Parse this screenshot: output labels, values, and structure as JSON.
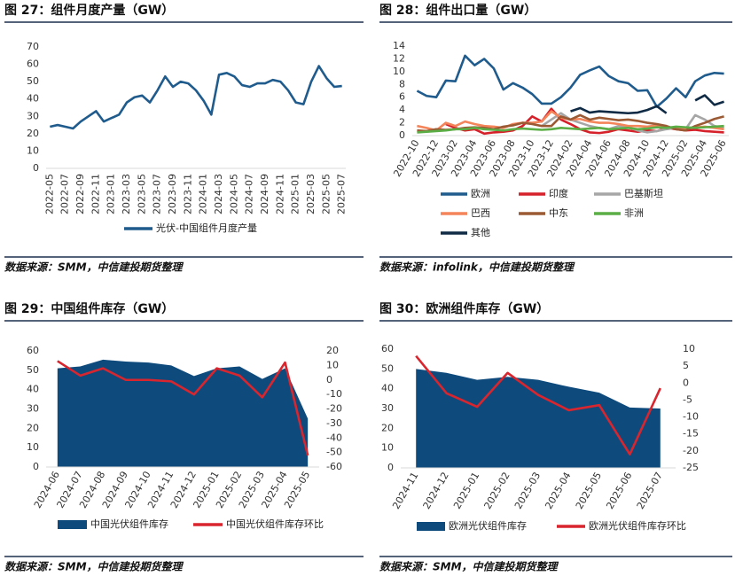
{
  "chart_data": [
    {
      "type": "line",
      "title": "图 27：组件月度产量（GW）",
      "source": "数据来源：SMM，中信建投期货整理",
      "categories": [
        "2022-05",
        null,
        "2022-07",
        null,
        "2022-09",
        null,
        "2022-11",
        null,
        "2023-01",
        null,
        "2023-03",
        null,
        "2023-05",
        null,
        "2023-07",
        null,
        "2023-09",
        null,
        "2023-11",
        null,
        "2024-01",
        null,
        "2024-03",
        null,
        "2024-05",
        null,
        "2024-07",
        null,
        "2024-09",
        null,
        "2024-11",
        null,
        "2025-01",
        null,
        "2025-03",
        null,
        "2025-05",
        null,
        "2025-07"
      ],
      "series": [
        {
          "name": "光伏-中国组件月度产量",
          "color": "#1f5b8c",
          "values": [
            24,
            25,
            24,
            23,
            27,
            30,
            33,
            27,
            29,
            31,
            38,
            41,
            42,
            38,
            45,
            53,
            47,
            50,
            49,
            45,
            39,
            31,
            54,
            55,
            53,
            48,
            47,
            49,
            49,
            51,
            50,
            45,
            38,
            37,
            50,
            59,
            52,
            47,
            47.5
          ]
        }
      ],
      "ylim": [
        0,
        70
      ],
      "yticks": [
        0,
        10,
        20,
        30,
        40,
        50,
        60,
        70
      ]
    },
    {
      "type": "line",
      "title": "图 28：组件出口量（GW）",
      "source": "数据来源：infolink，中信建投期货整理",
      "categories": [
        "2022-10",
        null,
        "2022-12",
        null,
        "2023-02",
        null,
        "2023-04",
        null,
        "2023-06",
        null,
        "2023-08",
        null,
        "2023-10",
        null,
        "2023-12",
        null,
        "2024-02",
        null,
        "2024-04",
        null,
        "2024-06",
        null,
        "2024-08",
        null,
        "2024-10",
        null,
        "2024-12",
        null,
        "2025-02",
        null,
        "2025-04",
        null,
        "2025-06"
      ],
      "series": [
        {
          "name": "欧洲",
          "color": "#1f5b8c",
          "values": [
            7,
            6.2,
            6,
            8.6,
            8.5,
            12.5,
            11,
            12,
            10.5,
            7.2,
            8.2,
            7.5,
            6.5,
            5,
            5,
            6,
            7.5,
            9.5,
            10.2,
            10.8,
            9.3,
            8.5,
            8.2,
            7,
            7.1,
            4.5,
            5.8,
            7.4,
            6,
            8.5,
            9.4,
            9.8,
            9.7
          ]
        },
        {
          "name": "印度",
          "color": "#d6202a",
          "values": [
            null,
            null,
            null,
            1.8,
            1.2,
            0.8,
            1.0,
            0.3,
            0.5,
            0.6,
            0.8,
            1.5,
            3.0,
            2.2,
            4.2,
            2.5,
            1.8,
            1.0,
            0.5,
            0.4,
            0.6,
            1.0,
            0.8,
            0.6,
            0.8,
            0.7,
            1.2,
            1.0,
            0.8,
            0.9,
            0.7,
            0.6,
            0.5
          ]
        },
        {
          "name": "巴基斯坦",
          "color": "#a6a6a6",
          "values": [
            null,
            null,
            null,
            null,
            null,
            null,
            null,
            null,
            null,
            null,
            null,
            null,
            null,
            1.5,
            2.5,
            3.5,
            2.5,
            2.0,
            1.5,
            1.2,
            1.0,
            1.5,
            1.3,
            0.8,
            0.5,
            0.7,
            1.0,
            1.2,
            1.0,
            3.2,
            2.5,
            1.5,
            1.2
          ]
        },
        {
          "name": "巴西",
          "color": "#f4845a",
          "values": [
            1.5,
            1.2,
            0.8,
            2.0,
            1.5,
            2.2,
            1.8,
            1.5,
            1.4,
            1.2,
            1.8,
            2.0,
            2.0,
            2.2,
            3.8,
            2.8,
            2.5,
            2.6,
            2.2,
            2.0,
            2.0,
            1.8,
            1.5,
            1.5,
            1.4,
            1.6,
            1.3,
            1.2,
            1.0,
            1.3,
            1.4,
            1.2,
            1.0
          ]
        },
        {
          "name": "中东",
          "color": "#9b5a33",
          "values": [
            0.8,
            0.7,
            1.0,
            0.9,
            1.0,
            1.2,
            1.3,
            1.2,
            1.0,
            1.4,
            1.6,
            2.0,
            1.8,
            1.5,
            1.5,
            3.0,
            2.5,
            3.2,
            2.5,
            2.8,
            2.6,
            2.4,
            2.5,
            2.3,
            2.0,
            1.8,
            1.5,
            1.0,
            0.8,
            1.5,
            2.0,
            2.6,
            3.0
          ]
        },
        {
          "name": "非洲",
          "color": "#5bad45",
          "values": [
            0.5,
            0.6,
            0.7,
            0.8,
            1.0,
            1.0,
            1.2,
            1.0,
            0.9,
            0.8,
            1.0,
            1.1,
            1.0,
            0.9,
            1.0,
            1.2,
            1.1,
            1.0,
            1.1,
            1.2,
            1.0,
            1.1,
            1.2,
            1.0,
            1.1,
            1.3,
            1.2,
            1.4,
            1.3,
            1.2,
            1.3,
            1.4,
            1.5
          ]
        },
        {
          "name": "其他",
          "color": "#0f2a44",
          "values": [
            null,
            null,
            null,
            null,
            null,
            null,
            null,
            null,
            null,
            null,
            null,
            null,
            null,
            null,
            null,
            null,
            3.8,
            4.3,
            3.6,
            3.8,
            3.7,
            3.6,
            3.5,
            3.6,
            4.0,
            4.6,
            3.5,
            null,
            null,
            5.5,
            6.3,
            4.8,
            5.3
          ]
        }
      ],
      "ylim": [
        0,
        14
      ],
      "yticks": [
        0,
        2,
        4,
        6,
        8,
        10,
        12,
        14
      ]
    },
    {
      "type": "combo",
      "title": "图 29：中国组件库存（GW）",
      "source": "数据来源：SMM，中信建投期货整理",
      "categories": [
        "2024-06",
        "2024-07",
        "2024-08",
        "2024-09",
        "2024-10",
        "2024-11",
        "2024-12",
        "2025-01",
        "2025-02",
        "2025-03",
        "2025-04",
        "2025-05"
      ],
      "series": [
        {
          "name": "中国光伏组件库存",
          "type": "area",
          "color": "#0e4a7c",
          "values": [
            51,
            52,
            55.5,
            54.5,
            54,
            52.5,
            47,
            51,
            52,
            45.5,
            51,
            25
          ]
        },
        {
          "name": "中国光伏组件库存环比",
          "type": "line",
          "axis": "y2",
          "color": "#d9252e",
          "values": [
            13,
            3,
            8,
            0,
            0,
            -1,
            -10,
            8,
            3,
            -12,
            12,
            -52
          ]
        }
      ],
      "ylim": [
        0,
        60
      ],
      "yticks": [
        0,
        10,
        20,
        30,
        40,
        50,
        60
      ],
      "y2lim": [
        -60,
        20
      ],
      "y2ticks": [
        -60,
        -50,
        -40,
        -30,
        -20,
        -10,
        0,
        10,
        20
      ]
    },
    {
      "type": "combo",
      "title": "图 30：欧洲组件库存（GW）",
      "source": "数据来源：SMM，中信建投期货整理",
      "categories": [
        "2024-11",
        "2024-12",
        "2025-01",
        "2025-02",
        "2025-03",
        "2025-04",
        "2025-05",
        "2025-06",
        "2025-07"
      ],
      "series": [
        {
          "name": "欧洲光伏组件库存",
          "type": "area",
          "color": "#0e4a7c",
          "values": [
            50,
            48,
            44.5,
            46,
            44.5,
            41,
            38,
            30.5,
            30
          ]
        },
        {
          "name": "欧洲光伏组件库存环比",
          "type": "line",
          "axis": "y2",
          "color": "#d9252e",
          "values": [
            8,
            -3,
            -7,
            3,
            -3.5,
            -8,
            -6.5,
            -21,
            -1.5
          ]
        }
      ],
      "ylim": [
        0,
        60
      ],
      "yticks": [
        0,
        10,
        20,
        30,
        40,
        50,
        60
      ],
      "y2lim": [
        -25,
        10
      ],
      "y2ticks": [
        -25,
        -20,
        -15,
        -10,
        -5,
        0,
        5,
        10
      ]
    }
  ]
}
